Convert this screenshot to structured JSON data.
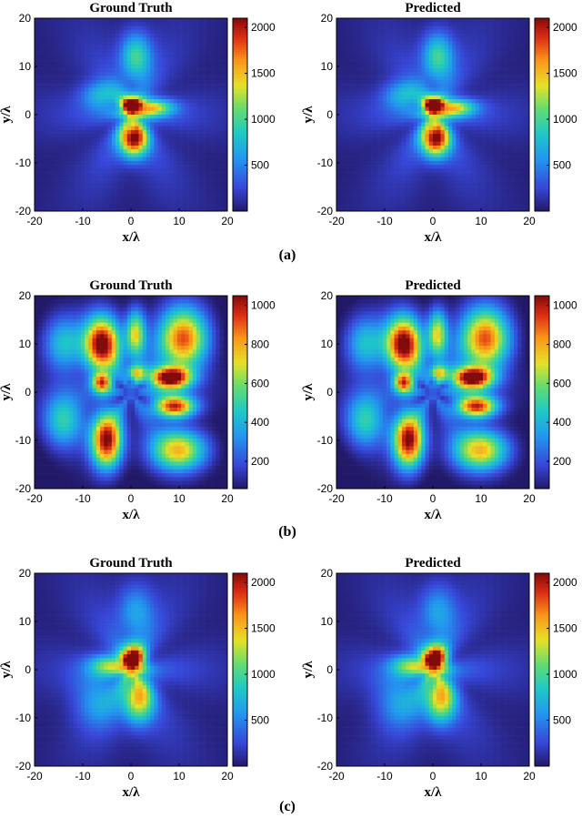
{
  "chart_data": [
    {
      "type": "heatmap",
      "title": "Ground Truth",
      "xlabel": "x/λ",
      "ylabel": "y/λ",
      "xlim": [
        -20,
        20
      ],
      "ylim": [
        -20,
        20
      ],
      "xticks": [
        "-20",
        "-10",
        "0",
        "10",
        "20"
      ],
      "yticks": [
        "20",
        "10",
        "0",
        "-10",
        "-20"
      ],
      "colorbar": {
        "min": 0,
        "max": 2100,
        "ticks": [
          "2000",
          "1500",
          "1000",
          "500"
        ],
        "tick_values": [
          2000,
          1500,
          1000,
          500
        ]
      },
      "peak_value": 2000,
      "sources": [
        {
          "x": 0.5,
          "y": -5,
          "amp": 2000,
          "sx": 2.0,
          "sy": 2.6
        },
        {
          "x": 0,
          "y": 2,
          "amp": 1750,
          "sx": 1.4,
          "sy": 1.4
        },
        {
          "x": 4,
          "y": 1.5,
          "amp": 1300,
          "sx": 3.2,
          "sy": 1.3
        },
        {
          "x": 1,
          "y": 12,
          "amp": 900,
          "sx": 2.2,
          "sy": 3.5
        },
        {
          "x": -6,
          "y": 4,
          "amp": 650,
          "sx": 3.0,
          "sy": 2.0
        }
      ]
    },
    {
      "type": "heatmap",
      "title": "Predicted",
      "xlabel": "x/λ",
      "ylabel": "y/λ",
      "xlim": [
        -20,
        20
      ],
      "ylim": [
        -20,
        20
      ],
      "xticks": [
        "-20",
        "-10",
        "0",
        "10",
        "20"
      ],
      "yticks": [
        "20",
        "10",
        "0",
        "-10",
        "-20"
      ],
      "colorbar": {
        "min": 0,
        "max": 2100,
        "ticks": [
          "2000",
          "1500",
          "1000",
          "500"
        ],
        "tick_values": [
          2000,
          1500,
          1000,
          500
        ]
      },
      "peak_value": 2000,
      "sources": [
        {
          "x": 0.5,
          "y": -5,
          "amp": 2000,
          "sx": 2.0,
          "sy": 2.6
        },
        {
          "x": 0,
          "y": 2,
          "amp": 1750,
          "sx": 1.4,
          "sy": 1.4
        },
        {
          "x": 4,
          "y": 1.5,
          "amp": 1300,
          "sx": 3.2,
          "sy": 1.3
        },
        {
          "x": 1,
          "y": 12,
          "amp": 900,
          "sx": 2.2,
          "sy": 3.5
        },
        {
          "x": -6,
          "y": 4,
          "amp": 650,
          "sx": 3.0,
          "sy": 2.0
        }
      ]
    },
    {
      "type": "heatmap",
      "title": "Ground Truth",
      "xlabel": "x/λ",
      "ylabel": "y/λ",
      "xlim": [
        -20,
        20
      ],
      "ylim": [
        -20,
        20
      ],
      "xticks": [
        "-20",
        "-10",
        "0",
        "10",
        "20"
      ],
      "yticks": [
        "20",
        "10",
        "0",
        "-10",
        "-20"
      ],
      "colorbar": {
        "min": 60,
        "max": 1050,
        "ticks": [
          "1000",
          "800",
          "600",
          "400",
          "200"
        ],
        "tick_values": [
          1000,
          800,
          600,
          400,
          200
        ]
      },
      "peak_value": 1050,
      "sources": [
        {
          "x": -6,
          "y": 10,
          "amp": 1000,
          "sx": 2.6,
          "sy": 4.0
        },
        {
          "x": 11,
          "y": 11,
          "amp": 850,
          "sx": 3.5,
          "sy": 4.5
        },
        {
          "x": 8,
          "y": 3,
          "amp": 1050,
          "sx": 3.0,
          "sy": 1.6
        },
        {
          "x": 9,
          "y": -3,
          "amp": 900,
          "sx": 3.0,
          "sy": 1.6
        },
        {
          "x": -5,
          "y": -10,
          "amp": 950,
          "sx": 2.2,
          "sy": 4.0
        },
        {
          "x": 10,
          "y": -12,
          "amp": 700,
          "sx": 4.0,
          "sy": 3.0
        },
        {
          "x": -14,
          "y": -6,
          "amp": 450,
          "sx": 3.0,
          "sy": 4.0
        },
        {
          "x": -14,
          "y": 10,
          "amp": 400,
          "sx": 3.0,
          "sy": 4.0
        },
        {
          "x": 1,
          "y": 12,
          "amp": 650,
          "sx": 1.4,
          "sy": 3.5
        },
        {
          "x": -6,
          "y": 2,
          "amp": 750,
          "sx": 1.4,
          "sy": 1.4
        },
        {
          "x": 1,
          "y": 4,
          "amp": 500,
          "sx": 1.2,
          "sy": 1.2
        }
      ]
    },
    {
      "type": "heatmap",
      "title": "Predicted",
      "xlabel": "x/λ",
      "ylabel": "y/λ",
      "xlim": [
        -20,
        20
      ],
      "ylim": [
        -20,
        20
      ],
      "xticks": [
        "-20",
        "-10",
        "0",
        "10",
        "20"
      ],
      "yticks": [
        "20",
        "10",
        "0",
        "-10",
        "-20"
      ],
      "colorbar": {
        "min": 60,
        "max": 1050,
        "ticks": [
          "1000",
          "800",
          "600",
          "400",
          "200"
        ],
        "tick_values": [
          1000,
          800,
          600,
          400,
          200
        ]
      },
      "peak_value": 1050,
      "sources": [
        {
          "x": -6,
          "y": 10,
          "amp": 1000,
          "sx": 2.6,
          "sy": 4.0
        },
        {
          "x": 11,
          "y": 11,
          "amp": 850,
          "sx": 3.5,
          "sy": 4.5
        },
        {
          "x": 8,
          "y": 3,
          "amp": 1050,
          "sx": 3.0,
          "sy": 1.6
        },
        {
          "x": 9,
          "y": -3,
          "amp": 900,
          "sx": 3.0,
          "sy": 1.6
        },
        {
          "x": -5,
          "y": -10,
          "amp": 950,
          "sx": 2.2,
          "sy": 4.0
        },
        {
          "x": 10,
          "y": -12,
          "amp": 700,
          "sx": 4.0,
          "sy": 3.0
        },
        {
          "x": -14,
          "y": -6,
          "amp": 450,
          "sx": 3.0,
          "sy": 4.0
        },
        {
          "x": -14,
          "y": 10,
          "amp": 400,
          "sx": 3.0,
          "sy": 4.0
        },
        {
          "x": 1,
          "y": 12,
          "amp": 650,
          "sx": 1.4,
          "sy": 3.5
        },
        {
          "x": -6,
          "y": 2,
          "amp": 750,
          "sx": 1.4,
          "sy": 1.4
        },
        {
          "x": 1,
          "y": 4,
          "amp": 500,
          "sx": 1.2,
          "sy": 1.2
        }
      ]
    },
    {
      "type": "heatmap",
      "title": "Ground Truth",
      "xlabel": "x/λ",
      "ylabel": "y/λ",
      "xlim": [
        -20,
        20
      ],
      "ylim": [
        -20,
        20
      ],
      "xticks": [
        "-20",
        "-10",
        "0",
        "10",
        "20"
      ],
      "yticks": [
        "20",
        "10",
        "0",
        "-10",
        "-20"
      ],
      "colorbar": {
        "min": 0,
        "max": 2100,
        "ticks": [
          "2000",
          "1500",
          "1000",
          "500"
        ],
        "tick_values": [
          2000,
          1500,
          1000,
          500
        ]
      },
      "peak_value": 2000,
      "sources": [
        {
          "x": 0.5,
          "y": 2.5,
          "amp": 2000,
          "sx": 1.6,
          "sy": 2.0
        },
        {
          "x": 1.5,
          "y": -6,
          "amp": 1300,
          "sx": 2.2,
          "sy": 3.5
        },
        {
          "x": -4,
          "y": 1,
          "amp": 900,
          "sx": 3.0,
          "sy": 1.6
        },
        {
          "x": 1,
          "y": 12,
          "amp": 550,
          "sx": 2.5,
          "sy": 4.0
        },
        {
          "x": -7,
          "y": -6,
          "amp": 500,
          "sx": 3.5,
          "sy": 4.0
        }
      ]
    },
    {
      "type": "heatmap",
      "title": "Predicted",
      "xlabel": "x/λ",
      "ylabel": "y/λ",
      "xlim": [
        -20,
        20
      ],
      "ylim": [
        -20,
        20
      ],
      "xticks": [
        "-20",
        "-10",
        "0",
        "10",
        "20"
      ],
      "yticks": [
        "20",
        "10",
        "0",
        "-10",
        "-20"
      ],
      "colorbar": {
        "min": 0,
        "max": 2100,
        "ticks": [
          "2000",
          "1500",
          "1000",
          "500"
        ],
        "tick_values": [
          2000,
          1500,
          1000,
          500
        ]
      },
      "peak_value": 2000,
      "sources": [
        {
          "x": 0.5,
          "y": 2.5,
          "amp": 2000,
          "sx": 1.6,
          "sy": 2.0
        },
        {
          "x": 1.5,
          "y": -6,
          "amp": 1300,
          "sx": 2.2,
          "sy": 3.5
        },
        {
          "x": -4,
          "y": 1,
          "amp": 900,
          "sx": 3.0,
          "sy": 1.6
        },
        {
          "x": 1,
          "y": 12,
          "amp": 550,
          "sx": 2.5,
          "sy": 4.0
        },
        {
          "x": -7,
          "y": -6,
          "amp": 500,
          "sx": 3.5,
          "sy": 4.0
        }
      ]
    }
  ],
  "captions": [
    "(a)",
    "(b)",
    "(c)"
  ]
}
